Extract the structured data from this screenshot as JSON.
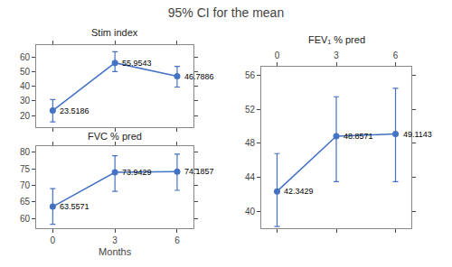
{
  "title": "95% CI for the mean",
  "chart_data": [
    {
      "type": "line",
      "title": "Stim index",
      "x": [
        0,
        3,
        6
      ],
      "values": [
        23.5186,
        55.9543,
        46.7886
      ],
      "ci_low": [
        15.8,
        50.0,
        39.5
      ],
      "ci_high": [
        31.0,
        63.5,
        53.5
      ],
      "color": "#4472C4",
      "marker": "circle",
      "line_style": "solid",
      "xlim": [
        -0.8,
        6.8
      ],
      "xticks": [
        0,
        3,
        6
      ],
      "ylim": [
        12,
        68
      ],
      "yticks": [
        20,
        30,
        40,
        50,
        60
      ],
      "grid": false,
      "data_labels": true,
      "tick_labels": "y"
    },
    {
      "type": "line",
      "title": "FVC % pred",
      "xlabel": "Months",
      "x": [
        0,
        3,
        6
      ],
      "values": [
        63.5571,
        73.9429,
        74.1857
      ],
      "ci_low": [
        58.2,
        68.2,
        68.5
      ],
      "ci_high": [
        69.0,
        79.0,
        79.5
      ],
      "color": "#4472C4",
      "marker": "circle",
      "line_style": "solid",
      "xlim": [
        -0.8,
        6.8
      ],
      "xticks": [
        0,
        3,
        6
      ],
      "ylim": [
        57,
        82
      ],
      "yticks": [
        60,
        65,
        70,
        75,
        80
      ],
      "grid": false,
      "data_labels": true
    },
    {
      "type": "line",
      "title": "FEV₁ % pred",
      "x": [
        0,
        3,
        6
      ],
      "values": [
        42.3429,
        48.8571,
        49.1143
      ],
      "ci_low": [
        38.2,
        43.5,
        43.5
      ],
      "ci_high": [
        46.8,
        53.5,
        54.5
      ],
      "color": "#4472C4",
      "marker": "circle",
      "line_style": "solid",
      "xlim": [
        -0.8,
        6.8
      ],
      "xticks": [
        0,
        3,
        6
      ],
      "ylim": [
        38,
        57
      ],
      "yticks": [
        40,
        44,
        48,
        52,
        56
      ],
      "grid": false,
      "data_labels": true
    }
  ]
}
